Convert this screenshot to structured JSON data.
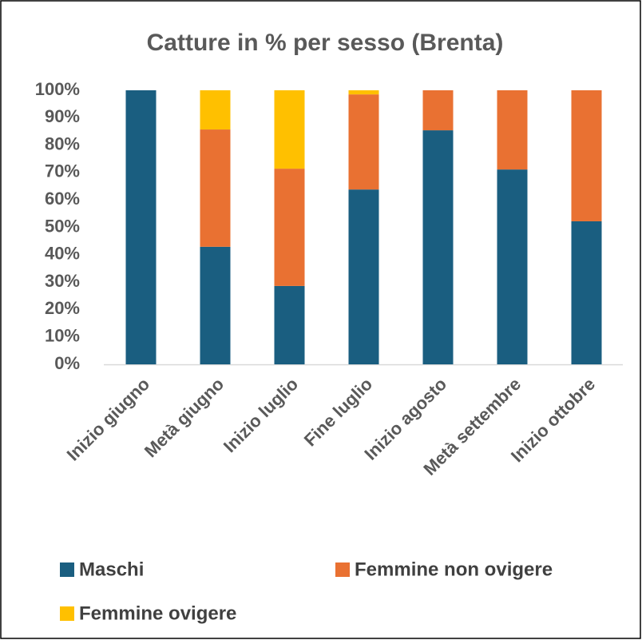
{
  "chart_data": {
    "type": "stacked_bar",
    "title": "Catture in % per sesso (Brenta)",
    "categories": [
      "Inizio giugno",
      "Metà giugno",
      "Inizio luglio",
      "Fine luglio",
      "Inizio agosto",
      "Metà settembre",
      "Inizio ottobre"
    ],
    "series": [
      {
        "name": "Maschi",
        "color": "#1a5e80",
        "values": [
          100,
          42.9,
          28.6,
          63.8,
          85.4,
          71.1,
          52.2
        ]
      },
      {
        "name": "Femmine non ovigere",
        "color": "#e97132",
        "values": [
          0,
          42.8,
          42.8,
          34.7,
          14.6,
          28.9,
          47.8
        ]
      },
      {
        "name": "Femmine ovigere",
        "color": "#ffc000",
        "values": [
          0,
          14.3,
          28.6,
          1.5,
          0,
          0,
          0
        ]
      }
    ],
    "ylim": [
      0,
      100
    ],
    "yticks": [
      {
        "value": 0,
        "label": "0%"
      },
      {
        "value": 10,
        "label": "10%"
      },
      {
        "value": 20,
        "label": "20%"
      },
      {
        "value": 30,
        "label": "30%"
      },
      {
        "value": 40,
        "label": "40%"
      },
      {
        "value": 50,
        "label": "50%"
      },
      {
        "value": 60,
        "label": "60%"
      },
      {
        "value": 70,
        "label": "70%"
      },
      {
        "value": 80,
        "label": "80%"
      },
      {
        "value": 90,
        "label": "90%"
      },
      {
        "value": 100,
        "label": "100%"
      }
    ],
    "grid": false
  }
}
